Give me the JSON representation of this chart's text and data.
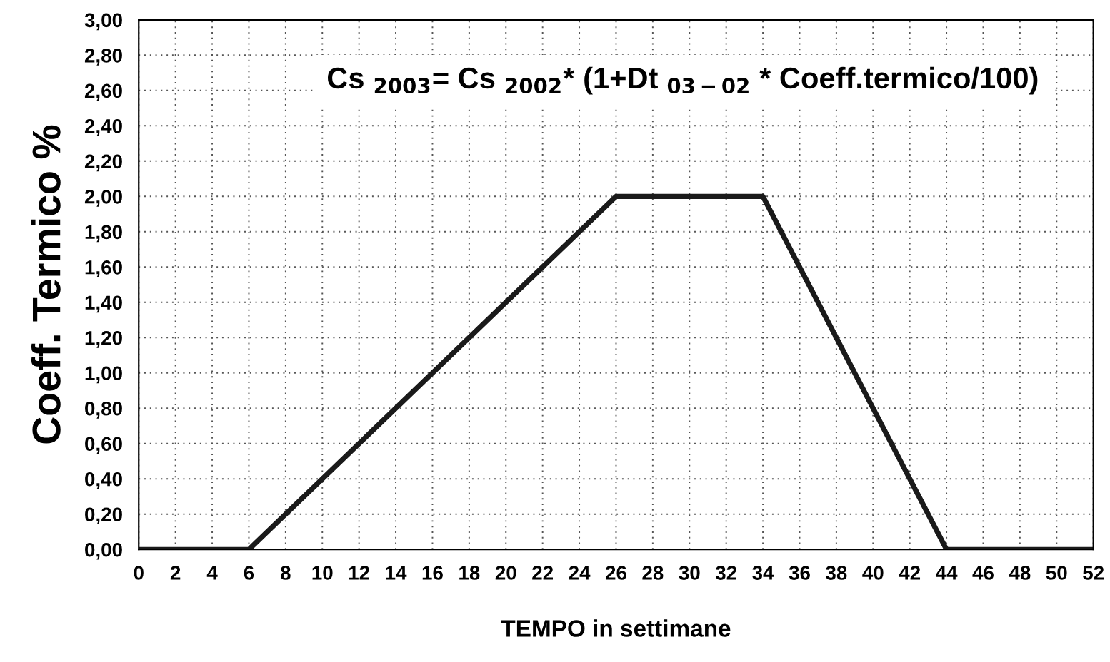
{
  "chart_data": {
    "type": "line",
    "ylabel": "Coeff. Termico %",
    "xlabel": "TEMPO in settimane",
    "annotations": [
      "Cs $_{2003}$= Cs $_{2002}$* (1+Dt $_{03−02}$ * Coeff.termico/100)"
    ],
    "x": [
      0,
      6,
      26,
      34,
      44,
      52
    ],
    "series": [
      {
        "color": "#1a1a1a",
        "values": [
          0,
          0,
          2.0,
          2.0,
          0,
          0
        ]
      }
    ],
    "xlim": [
      0,
      52
    ],
    "xticks": [
      0,
      2,
      4,
      6,
      8,
      10,
      12,
      14,
      16,
      18,
      20,
      22,
      24,
      26,
      28,
      30,
      32,
      34,
      36,
      38,
      40,
      42,
      44,
      46,
      48,
      50,
      52
    ],
    "ylim": [
      0,
      3
    ],
    "yticks": [
      {
        "value": 0,
        "label": "0,00"
      },
      {
        "value": 0.2,
        "label": "0,20"
      },
      {
        "value": 0.4,
        "label": "0,40"
      },
      {
        "value": 0.6,
        "label": "0,60"
      },
      {
        "value": 0.8,
        "label": "0,80"
      },
      {
        "value": 1.0,
        "label": "1,00"
      },
      {
        "value": 1.2,
        "label": "1,20"
      },
      {
        "value": 1.4,
        "label": "1,40"
      },
      {
        "value": 1.6,
        "label": "1,60"
      },
      {
        "value": 1.8,
        "label": "1,80"
      },
      {
        "value": 2.0,
        "label": "2,00"
      },
      {
        "value": 2.2,
        "label": "2,20"
      },
      {
        "value": 2.4,
        "label": "2,40"
      },
      {
        "value": 2.6,
        "label": "2,60"
      },
      {
        "value": 2.8,
        "label": "2,80"
      },
      {
        "value": 3.0,
        "label": "3,00"
      }
    ],
    "grid": true,
    "legend": false,
    "marker": "none",
    "line_style": "solid"
  }
}
